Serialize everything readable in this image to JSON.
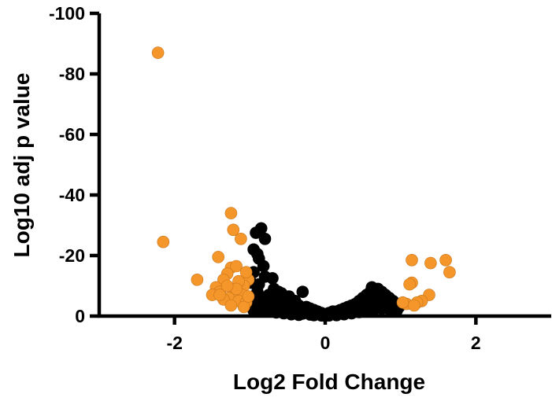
{
  "chart_data": {
    "type": "scatter",
    "title": "",
    "xlabel": "Log2 Fold Change",
    "ylabel": "Log10 adj p value",
    "xlim": [
      -3,
      3
    ],
    "ylim": [
      0,
      -100
    ],
    "x_ticks": [
      -2,
      0,
      2
    ],
    "x_tick_labels": [
      "-2",
      "0",
      "2"
    ],
    "y_ticks": [
      0,
      -20,
      -40,
      -60,
      -80,
      -100
    ],
    "y_tick_labels": [
      "0",
      "-20",
      "-40",
      "-60",
      "-80",
      "-100"
    ],
    "grid": false,
    "legend": "none",
    "colors": {
      "significant": "#f5962a",
      "not_significant": "#000000"
    },
    "series": [
      {
        "points": [
          [
            -2.22,
            -87
          ],
          [
            -2.15,
            -24.5
          ],
          [
            -1.7,
            -12
          ],
          [
            -1.25,
            -34
          ],
          [
            -1.22,
            -28.5
          ],
          [
            -1.42,
            -19.5
          ],
          [
            -1.12,
            -25.5
          ],
          [
            -1.25,
            -16
          ],
          [
            -1.18,
            -16.5
          ],
          [
            -1.3,
            -14
          ],
          [
            -1.02,
            -12
          ],
          [
            -1.08,
            -10
          ],
          [
            -1.15,
            -11.5
          ],
          [
            -1.05,
            -14.5
          ],
          [
            -1.35,
            -12
          ],
          [
            -1.45,
            -9.5
          ],
          [
            -1.4,
            -8
          ],
          [
            -1.5,
            -7
          ],
          [
            -1.2,
            -8
          ],
          [
            -1.1,
            -7
          ],
          [
            -1.28,
            -6
          ],
          [
            -1.35,
            -5.5
          ],
          [
            -1.15,
            -5
          ],
          [
            -1.05,
            -4.5
          ],
          [
            -1.25,
            -3.5
          ],
          [
            -1.08,
            -3
          ],
          [
            -1.4,
            -7
          ],
          [
            -1.18,
            -9
          ],
          [
            -1.02,
            -6.5
          ],
          [
            -1.3,
            -10
          ],
          [
            1.15,
            -18.5
          ],
          [
            1.4,
            -17.5
          ],
          [
            1.6,
            -18.5
          ],
          [
            1.65,
            -14.5
          ],
          [
            1.15,
            -11
          ],
          [
            1.12,
            -10.5
          ],
          [
            1.38,
            -7
          ],
          [
            1.28,
            -5
          ],
          [
            1.22,
            -4.5
          ],
          [
            1.08,
            -4
          ],
          [
            1.18,
            -3.5
          ],
          [
            1.03,
            -4.5
          ]
        ]
      },
      {
        "points": [
          [
            -0.85,
            -29
          ],
          [
            -0.92,
            -27.5
          ],
          [
            -0.8,
            -25.5
          ],
          [
            -0.95,
            -22
          ],
          [
            -0.9,
            -20.5
          ],
          [
            -0.88,
            -19
          ],
          [
            -0.82,
            -16.5
          ],
          [
            -0.95,
            -14.5
          ],
          [
            -0.8,
            -13
          ],
          [
            -0.7,
            -12.5
          ],
          [
            -0.98,
            -11
          ],
          [
            -0.88,
            -10.5
          ],
          [
            -0.68,
            -9
          ],
          [
            -0.62,
            -8
          ],
          [
            -0.58,
            -7.5
          ],
          [
            -0.55,
            -6
          ],
          [
            -0.5,
            -5.5
          ],
          [
            -0.48,
            -6.5
          ],
          [
            -0.4,
            -5
          ],
          [
            -0.3,
            -8
          ],
          [
            -0.45,
            -4
          ],
          [
            -0.35,
            -3.5
          ],
          [
            -0.25,
            -3
          ],
          [
            -0.2,
            -2.5
          ],
          [
            -0.15,
            -2
          ],
          [
            -0.1,
            -1.5
          ],
          [
            -0.05,
            -1
          ],
          [
            0,
            -0.5
          ],
          [
            0.05,
            -1
          ],
          [
            0.1,
            -1.5
          ],
          [
            0.15,
            -1.5
          ],
          [
            0.2,
            -2
          ],
          [
            0.25,
            -2.5
          ],
          [
            0.3,
            -3
          ],
          [
            0.35,
            -3.5
          ],
          [
            0.4,
            -4
          ],
          [
            0.45,
            -5
          ],
          [
            0.5,
            -6
          ],
          [
            0.55,
            -7
          ],
          [
            0.6,
            -8
          ],
          [
            0.62,
            -9.5
          ],
          [
            0.7,
            -9
          ],
          [
            0.75,
            -8
          ],
          [
            0.8,
            -7
          ],
          [
            0.85,
            -6
          ],
          [
            0.9,
            -5
          ],
          [
            0.95,
            -4
          ],
          [
            0.98,
            -3
          ],
          [
            0.72,
            -5.5
          ],
          [
            0.65,
            -4.5
          ],
          [
            -0.9,
            -8
          ],
          [
            -0.95,
            -6
          ],
          [
            -0.85,
            -5
          ],
          [
            -0.92,
            -4
          ],
          [
            -0.98,
            -3
          ],
          [
            -0.75,
            -7
          ],
          [
            -0.65,
            -5.5
          ],
          [
            -0.72,
            -4.5
          ],
          [
            -0.6,
            -3.5
          ],
          [
            -0.5,
            -3
          ],
          [
            -0.4,
            -2.5
          ],
          [
            -0.3,
            -2
          ],
          [
            -0.2,
            -1.5
          ],
          [
            -0.1,
            -1
          ],
          [
            0.1,
            -0.8
          ],
          [
            0.2,
            -1.2
          ],
          [
            0.3,
            -1.8
          ],
          [
            0.4,
            -2.2
          ],
          [
            0.5,
            -2.8
          ],
          [
            0.6,
            -3.2
          ],
          [
            0.7,
            -3.5
          ],
          [
            0.8,
            -3.8
          ],
          [
            0.9,
            -3.2
          ],
          [
            -0.8,
            -3.2
          ],
          [
            -0.7,
            -2.8
          ],
          [
            -0.6,
            -2.2
          ],
          [
            -0.5,
            -1.8
          ],
          [
            -0.4,
            -1.2
          ],
          [
            -0.3,
            -0.8
          ],
          [
            -0.2,
            -0.5
          ],
          [
            -0.15,
            -0.3
          ],
          [
            0.15,
            -0.3
          ],
          [
            0.25,
            -0.6
          ],
          [
            0.35,
            -0.9
          ],
          [
            0.45,
            -1.3
          ],
          [
            0.55,
            -1.7
          ],
          [
            0.65,
            -2.1
          ],
          [
            0.75,
            -2.4
          ],
          [
            0.85,
            -2.2
          ],
          [
            0.95,
            -1.8
          ],
          [
            -0.95,
            -1.8
          ],
          [
            -0.85,
            -2.2
          ],
          [
            -0.75,
            -1.6
          ],
          [
            -0.65,
            -1.2
          ],
          [
            -0.55,
            -0.9
          ],
          [
            -0.45,
            -0.6
          ],
          [
            -0.35,
            -0.4
          ],
          [
            0.05,
            -0.2
          ],
          [
            -0.05,
            -0.2
          ],
          [
            0.0,
            -0.1
          ]
        ]
      }
    ]
  }
}
